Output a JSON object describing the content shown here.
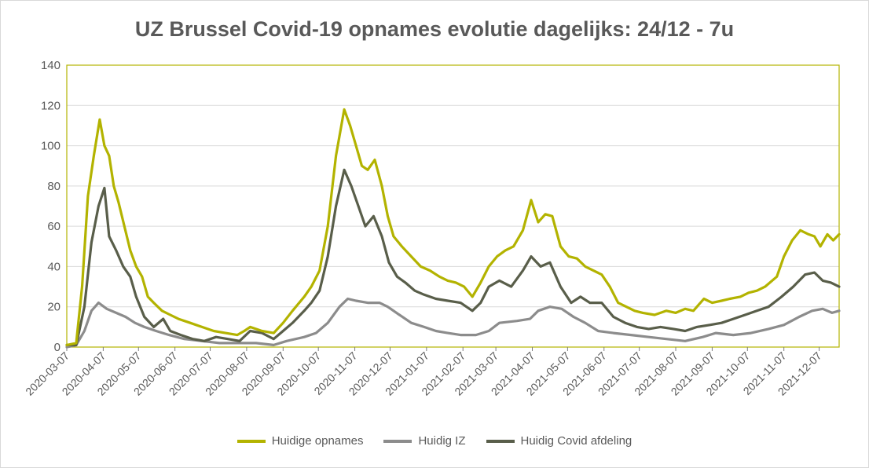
{
  "chart_data": {
    "type": "line",
    "title": "UZ Brussel Covid-19 opnames evolutie dagelijks: 24/12 - 7u",
    "xlabel": "",
    "ylabel": "",
    "ylim": [
      0,
      140
    ],
    "yticks": [
      0,
      20,
      40,
      60,
      80,
      100,
      120,
      140
    ],
    "xlim": [
      "2020-03-07",
      "2021-12-24"
    ],
    "xticks": [
      "2020-03-07",
      "2020-04-07",
      "2020-05-07",
      "2020-06-07",
      "2020-07-07",
      "2020-08-07",
      "2020-09-07",
      "2020-10-07",
      "2020-11-07",
      "2020-12-07",
      "2021-01-07",
      "2021-02-07",
      "2021-03-07",
      "2021-04-07",
      "2021-05-07",
      "2021-06-07",
      "2021-07-07",
      "2021-08-07",
      "2021-09-07",
      "2021-10-07",
      "2021-11-07",
      "2021-12-07"
    ],
    "grid": true,
    "legend": "bottom",
    "series": [
      {
        "name": "Huidige opnames",
        "color": "#b3b300",
        "points": [
          [
            "2020-03-07",
            1
          ],
          [
            "2020-03-15",
            2
          ],
          [
            "2020-03-20",
            30
          ],
          [
            "2020-03-25",
            75
          ],
          [
            "2020-03-30",
            95
          ],
          [
            "2020-04-04",
            113
          ],
          [
            "2020-04-08",
            100
          ],
          [
            "2020-04-12",
            95
          ],
          [
            "2020-04-16",
            80
          ],
          [
            "2020-04-20",
            72
          ],
          [
            "2020-04-25",
            60
          ],
          [
            "2020-04-30",
            48
          ],
          [
            "2020-05-05",
            40
          ],
          [
            "2020-05-10",
            35
          ],
          [
            "2020-05-15",
            25
          ],
          [
            "2020-05-20",
            22
          ],
          [
            "2020-05-27",
            18
          ],
          [
            "2020-06-03",
            16
          ],
          [
            "2020-06-10",
            14
          ],
          [
            "2020-06-20",
            12
          ],
          [
            "2020-06-30",
            10
          ],
          [
            "2020-07-10",
            8
          ],
          [
            "2020-07-20",
            7
          ],
          [
            "2020-07-30",
            6
          ],
          [
            "2020-08-05",
            8
          ],
          [
            "2020-08-10",
            10
          ],
          [
            "2020-08-20",
            8
          ],
          [
            "2020-08-30",
            7
          ],
          [
            "2020-09-07",
            12
          ],
          [
            "2020-09-15",
            18
          ],
          [
            "2020-09-25",
            25
          ],
          [
            "2020-10-01",
            30
          ],
          [
            "2020-10-08",
            38
          ],
          [
            "2020-10-15",
            60
          ],
          [
            "2020-10-22",
            95
          ],
          [
            "2020-10-29",
            118
          ],
          [
            "2020-11-03",
            110
          ],
          [
            "2020-11-08",
            100
          ],
          [
            "2020-11-13",
            90
          ],
          [
            "2020-11-18",
            88
          ],
          [
            "2020-11-24",
            93
          ],
          [
            "2020-11-30",
            80
          ],
          [
            "2020-12-05",
            65
          ],
          [
            "2020-12-10",
            55
          ],
          [
            "2020-12-17",
            50
          ],
          [
            "2020-12-25",
            45
          ],
          [
            "2021-01-02",
            40
          ],
          [
            "2021-01-10",
            38
          ],
          [
            "2021-01-18",
            35
          ],
          [
            "2021-01-25",
            33
          ],
          [
            "2021-02-01",
            32
          ],
          [
            "2021-02-08",
            30
          ],
          [
            "2021-02-15",
            25
          ],
          [
            "2021-02-22",
            32
          ],
          [
            "2021-03-01",
            40
          ],
          [
            "2021-03-08",
            45
          ],
          [
            "2021-03-15",
            48
          ],
          [
            "2021-03-22",
            50
          ],
          [
            "2021-03-30",
            58
          ],
          [
            "2021-04-06",
            73
          ],
          [
            "2021-04-12",
            62
          ],
          [
            "2021-04-18",
            66
          ],
          [
            "2021-04-24",
            65
          ],
          [
            "2021-05-01",
            50
          ],
          [
            "2021-05-08",
            45
          ],
          [
            "2021-05-15",
            44
          ],
          [
            "2021-05-22",
            40
          ],
          [
            "2021-05-29",
            38
          ],
          [
            "2021-06-05",
            36
          ],
          [
            "2021-06-12",
            30
          ],
          [
            "2021-06-19",
            22
          ],
          [
            "2021-06-26",
            20
          ],
          [
            "2021-07-03",
            18
          ],
          [
            "2021-07-10",
            17
          ],
          [
            "2021-07-20",
            16
          ],
          [
            "2021-07-30",
            18
          ],
          [
            "2021-08-07",
            17
          ],
          [
            "2021-08-15",
            19
          ],
          [
            "2021-08-22",
            18
          ],
          [
            "2021-08-31",
            24
          ],
          [
            "2021-09-07",
            22
          ],
          [
            "2021-09-15",
            23
          ],
          [
            "2021-09-22",
            24
          ],
          [
            "2021-10-01",
            25
          ],
          [
            "2021-10-08",
            27
          ],
          [
            "2021-10-15",
            28
          ],
          [
            "2021-10-22",
            30
          ],
          [
            "2021-11-01",
            35
          ],
          [
            "2021-11-07",
            45
          ],
          [
            "2021-11-14",
            53
          ],
          [
            "2021-11-21",
            58
          ],
          [
            "2021-11-28",
            56
          ],
          [
            "2021-12-03",
            55
          ],
          [
            "2021-12-08",
            50
          ],
          [
            "2021-12-14",
            56
          ],
          [
            "2021-12-19",
            53
          ],
          [
            "2021-12-24",
            56
          ]
        ]
      },
      {
        "name": "Huidig IZ",
        "color": "#8c8c8c",
        "points": [
          [
            "2020-03-07",
            0
          ],
          [
            "2020-03-15",
            1
          ],
          [
            "2020-03-22",
            8
          ],
          [
            "2020-03-28",
            18
          ],
          [
            "2020-04-03",
            22
          ],
          [
            "2020-04-10",
            19
          ],
          [
            "2020-04-18",
            17
          ],
          [
            "2020-04-26",
            15
          ],
          [
            "2020-05-04",
            12
          ],
          [
            "2020-05-12",
            10
          ],
          [
            "2020-05-22",
            8
          ],
          [
            "2020-06-02",
            6
          ],
          [
            "2020-06-15",
            4
          ],
          [
            "2020-06-30",
            3
          ],
          [
            "2020-07-15",
            2
          ],
          [
            "2020-07-30",
            2
          ],
          [
            "2020-08-15",
            2
          ],
          [
            "2020-08-30",
            1
          ],
          [
            "2020-09-10",
            3
          ],
          [
            "2020-09-25",
            5
          ],
          [
            "2020-10-05",
            7
          ],
          [
            "2020-10-15",
            12
          ],
          [
            "2020-10-25",
            20
          ],
          [
            "2020-11-01",
            24
          ],
          [
            "2020-11-08",
            23
          ],
          [
            "2020-11-18",
            22
          ],
          [
            "2020-11-28",
            22
          ],
          [
            "2020-12-05",
            20
          ],
          [
            "2020-12-15",
            16
          ],
          [
            "2020-12-25",
            12
          ],
          [
            "2021-01-05",
            10
          ],
          [
            "2021-01-15",
            8
          ],
          [
            "2021-01-25",
            7
          ],
          [
            "2021-02-05",
            6
          ],
          [
            "2021-02-18",
            6
          ],
          [
            "2021-03-01",
            8
          ],
          [
            "2021-03-10",
            12
          ],
          [
            "2021-03-25",
            13
          ],
          [
            "2021-04-05",
            14
          ],
          [
            "2021-04-12",
            18
          ],
          [
            "2021-04-22",
            20
          ],
          [
            "2021-05-02",
            19
          ],
          [
            "2021-05-12",
            15
          ],
          [
            "2021-05-22",
            12
          ],
          [
            "2021-06-02",
            8
          ],
          [
            "2021-06-15",
            7
          ],
          [
            "2021-06-30",
            6
          ],
          [
            "2021-07-15",
            5
          ],
          [
            "2021-07-30",
            4
          ],
          [
            "2021-08-15",
            3
          ],
          [
            "2021-08-30",
            5
          ],
          [
            "2021-09-10",
            7
          ],
          [
            "2021-09-25",
            6
          ],
          [
            "2021-10-10",
            7
          ],
          [
            "2021-10-25",
            9
          ],
          [
            "2021-11-07",
            11
          ],
          [
            "2021-11-20",
            15
          ],
          [
            "2021-12-01",
            18
          ],
          [
            "2021-12-10",
            19
          ],
          [
            "2021-12-18",
            17
          ],
          [
            "2021-12-24",
            18
          ]
        ]
      },
      {
        "name": "Huidig Covid afdeling",
        "color": "#595e4a",
        "points": [
          [
            "2020-03-07",
            1
          ],
          [
            "2020-03-15",
            1
          ],
          [
            "2020-03-22",
            20
          ],
          [
            "2020-03-28",
            52
          ],
          [
            "2020-04-03",
            70
          ],
          [
            "2020-04-08",
            79
          ],
          [
            "2020-04-12",
            55
          ],
          [
            "2020-04-18",
            48
          ],
          [
            "2020-04-24",
            40
          ],
          [
            "2020-04-30",
            35
          ],
          [
            "2020-05-05",
            25
          ],
          [
            "2020-05-12",
            15
          ],
          [
            "2020-05-20",
            10
          ],
          [
            "2020-05-28",
            14
          ],
          [
            "2020-06-03",
            8
          ],
          [
            "2020-06-12",
            6
          ],
          [
            "2020-06-22",
            4
          ],
          [
            "2020-07-02",
            3
          ],
          [
            "2020-07-12",
            5
          ],
          [
            "2020-07-22",
            4
          ],
          [
            "2020-08-01",
            3
          ],
          [
            "2020-08-10",
            8
          ],
          [
            "2020-08-20",
            7
          ],
          [
            "2020-08-30",
            4
          ],
          [
            "2020-09-07",
            8
          ],
          [
            "2020-09-15",
            12
          ],
          [
            "2020-09-25",
            18
          ],
          [
            "2020-10-01",
            22
          ],
          [
            "2020-10-08",
            28
          ],
          [
            "2020-10-15",
            45
          ],
          [
            "2020-10-22",
            70
          ],
          [
            "2020-10-29",
            88
          ],
          [
            "2020-11-04",
            80
          ],
          [
            "2020-11-10",
            70
          ],
          [
            "2020-11-16",
            60
          ],
          [
            "2020-11-23",
            65
          ],
          [
            "2020-11-30",
            55
          ],
          [
            "2020-12-06",
            42
          ],
          [
            "2020-12-13",
            35
          ],
          [
            "2020-12-20",
            32
          ],
          [
            "2020-12-28",
            28
          ],
          [
            "2021-01-05",
            26
          ],
          [
            "2021-01-15",
            24
          ],
          [
            "2021-01-25",
            23
          ],
          [
            "2021-02-05",
            22
          ],
          [
            "2021-02-15",
            18
          ],
          [
            "2021-02-22",
            22
          ],
          [
            "2021-03-01",
            30
          ],
          [
            "2021-03-10",
            33
          ],
          [
            "2021-03-20",
            30
          ],
          [
            "2021-03-30",
            38
          ],
          [
            "2021-04-06",
            45
          ],
          [
            "2021-04-14",
            40
          ],
          [
            "2021-04-22",
            42
          ],
          [
            "2021-05-01",
            30
          ],
          [
            "2021-05-10",
            22
          ],
          [
            "2021-05-18",
            25
          ],
          [
            "2021-05-26",
            22
          ],
          [
            "2021-06-05",
            22
          ],
          [
            "2021-06-15",
            15
          ],
          [
            "2021-06-25",
            12
          ],
          [
            "2021-07-05",
            10
          ],
          [
            "2021-07-15",
            9
          ],
          [
            "2021-07-25",
            10
          ],
          [
            "2021-08-05",
            9
          ],
          [
            "2021-08-15",
            8
          ],
          [
            "2021-08-25",
            10
          ],
          [
            "2021-09-05",
            11
          ],
          [
            "2021-09-15",
            12
          ],
          [
            "2021-09-25",
            14
          ],
          [
            "2021-10-05",
            16
          ],
          [
            "2021-10-15",
            18
          ],
          [
            "2021-10-25",
            20
          ],
          [
            "2021-11-05",
            25
          ],
          [
            "2021-11-15",
            30
          ],
          [
            "2021-11-25",
            36
          ],
          [
            "2021-12-03",
            37
          ],
          [
            "2021-12-10",
            33
          ],
          [
            "2021-12-17",
            32
          ],
          [
            "2021-12-24",
            30
          ]
        ]
      }
    ]
  }
}
